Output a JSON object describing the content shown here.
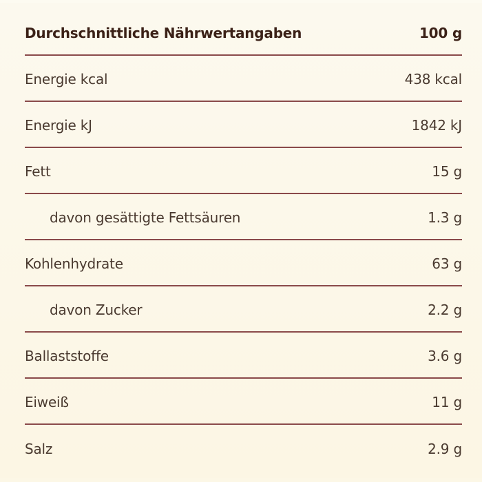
{
  "table": {
    "header": {
      "label": "Durchschnittliche Nährwertangaben",
      "value": "100 g"
    },
    "rows": [
      {
        "label": "Energie kcal",
        "value": "438 kcal",
        "indent": false
      },
      {
        "label": "Energie kJ",
        "value": "1842 kJ",
        "indent": false
      },
      {
        "label": "Fett",
        "value": "15 g",
        "indent": false
      },
      {
        "label": "davon gesättigte Fettsäuren",
        "value": "1.3 g",
        "indent": true
      },
      {
        "label": "Kohlenhydrate",
        "value": "63 g",
        "indent": false
      },
      {
        "label": "davon Zucker",
        "value": "2.2 g",
        "indent": true
      },
      {
        "label": "Ballaststoffe",
        "value": "3.6 g",
        "indent": false
      },
      {
        "label": "Eiweiß",
        "value": "11 g",
        "indent": false
      },
      {
        "label": "Salz",
        "value": "2.9 g",
        "indent": false
      }
    ]
  },
  "colors": {
    "background": "#fcf8ea",
    "divider": "#8a4a4a",
    "header_text": "#3b2117",
    "body_text": "#4a3a30"
  }
}
